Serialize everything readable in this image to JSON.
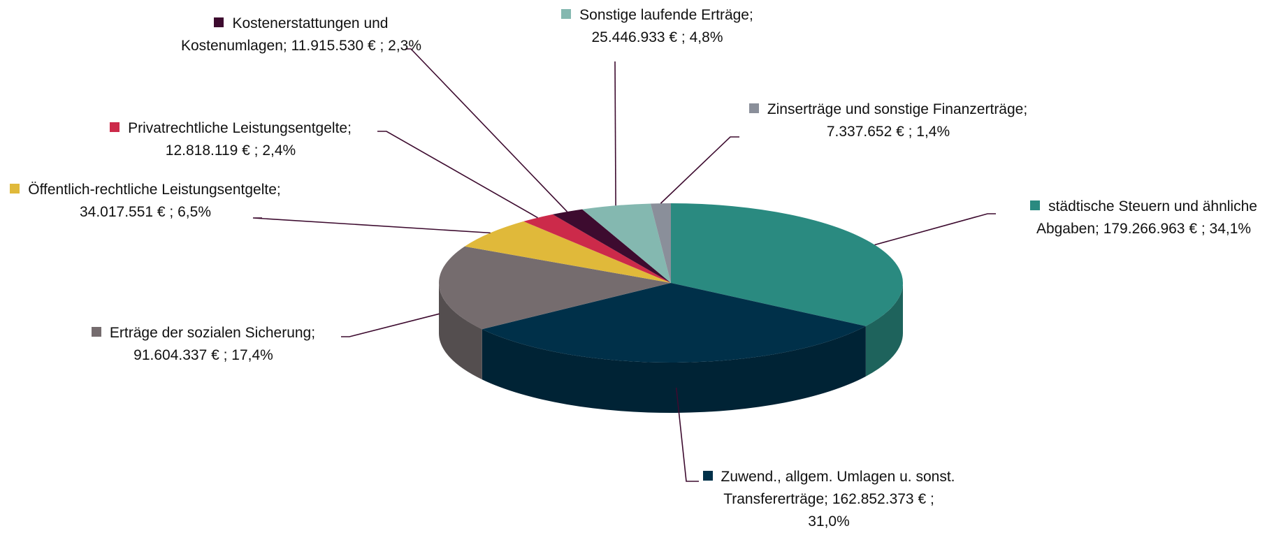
{
  "chart_data": {
    "type": "pie3d",
    "categories": [
      "städtische Steuern und ähnliche Abgaben;",
      "Zuwend., allgem. Umlagen u. sonst. Transfererträge;",
      "Erträge der sozialen Sicherung;",
      "Öffentlich-rechtliche Leistungsentgelte;",
      "Privatrechtliche Leistungsentgelte;",
      "Kostenerstattungen und Kostenumlagen;",
      "Sonstige laufende Erträge;",
      "Zinserträge und sonstige Finanzerträge;"
    ],
    "values": [
      179266963,
      162852373,
      91604337,
      34017551,
      12818119,
      11915530,
      25446933,
      7337652
    ],
    "value_labels": [
      "179.266.963 € ;",
      "162.852.373 € ;",
      "91.604.337 € ;",
      "34.017.551 € ;",
      "12.818.119 € ;",
      "11.915.530 € ;",
      "25.446.933 € ;",
      "7.337.652 € ;"
    ],
    "percents": [
      34.1,
      31.0,
      17.4,
      6.5,
      2.4,
      2.3,
      4.8,
      1.4
    ],
    "percent_labels": [
      "34,1%",
      "31,0%",
      "17,4%",
      "6,5%",
      "2,4%",
      "2,3%",
      "4,8%",
      "1,4%"
    ],
    "colors": [
      "#2a8a80",
      "#003049",
      "#756c6e",
      "#e0b93a",
      "#cc2a4a",
      "#3d0b2f",
      "#84b8b0",
      "#8a8f9a"
    ]
  }
}
